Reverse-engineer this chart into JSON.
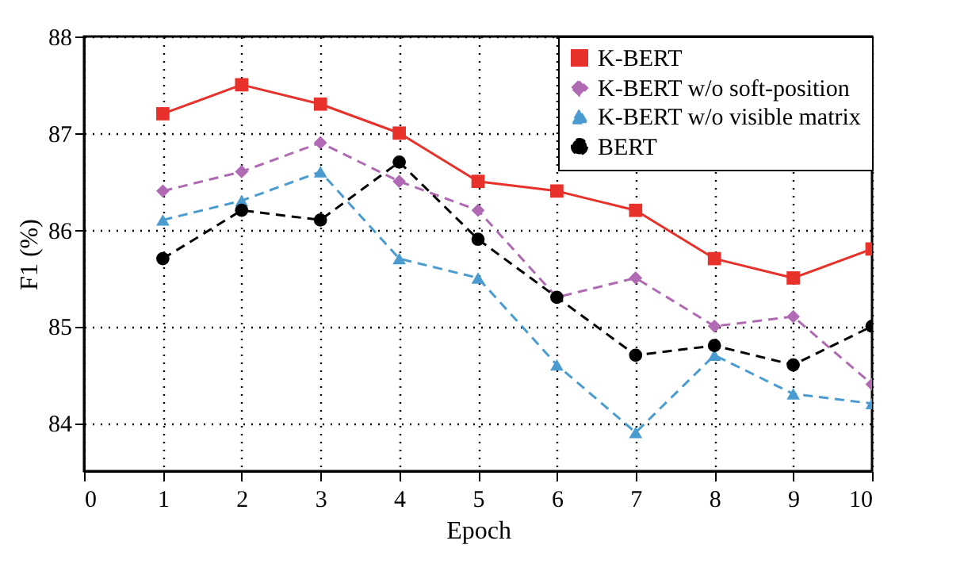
{
  "chart_data": {
    "type": "line",
    "xlabel": "Epoch",
    "ylabel": "F1 (%)",
    "x": [
      1,
      2,
      3,
      4,
      5,
      6,
      7,
      8,
      9,
      10
    ],
    "series": [
      {
        "name": "K-BERT",
        "color": "#e8312a",
        "marker": "square",
        "line_style": "solid",
        "values": [
          87.2,
          87.5,
          87.3,
          87.0,
          86.5,
          86.4,
          86.2,
          85.7,
          85.5,
          85.8
        ]
      },
      {
        "name": "K-BERT w/o soft-position",
        "color": "#b06ab3",
        "marker": "diamond",
        "line_style": "dashed",
        "values": [
          86.4,
          86.6,
          86.9,
          86.5,
          86.2,
          85.3,
          85.5,
          85.0,
          85.1,
          84.4
        ]
      },
      {
        "name": "K-BERT w/o visible matrix",
        "color": "#4a9bd0",
        "marker": "triangle",
        "line_style": "dashed",
        "values": [
          86.1,
          86.3,
          86.6,
          85.7,
          85.5,
          84.6,
          83.9,
          84.7,
          84.3,
          84.2
        ]
      },
      {
        "name": "BERT",
        "color": "#000000",
        "marker": "circle",
        "line_style": "dashed",
        "values": [
          85.7,
          86.2,
          86.1,
          86.7,
          85.9,
          85.3,
          84.7,
          84.8,
          84.6,
          85.0
        ]
      }
    ],
    "xlim": [
      0,
      10
    ],
    "xticks": [
      0,
      1,
      2,
      3,
      4,
      5,
      6,
      7,
      8,
      9,
      10
    ],
    "ylim": [
      83.5,
      88
    ],
    "yticks": [
      84,
      85,
      86,
      87,
      88
    ],
    "grid": true,
    "legend": "top right"
  }
}
